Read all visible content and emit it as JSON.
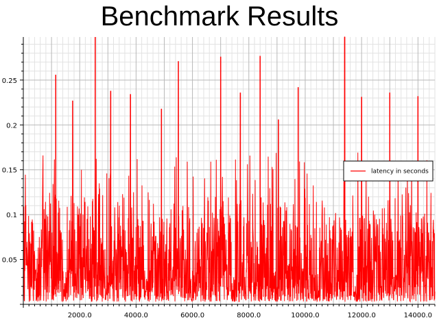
{
  "chart_data": {
    "type": "line",
    "title": "Benchmark Results",
    "xlabel": "",
    "ylabel": "",
    "xlim": [
      0,
      14600
    ],
    "ylim": [
      0,
      0.298
    ],
    "x_ticks": [
      2000,
      4000,
      6000,
      8000,
      10000,
      12000,
      14000
    ],
    "x_tick_labels": [
      "2000.0",
      "4000.0",
      "6000.0",
      "8000.0",
      "10000.0",
      "12000.0",
      "14000.0"
    ],
    "y_ticks": [
      0.05,
      0.1,
      0.15,
      0.2,
      0.25
    ],
    "y_tick_labels": [
      "0.05",
      "0.1",
      "0.15",
      "0.2",
      "0.25"
    ],
    "grid": true,
    "legend_position": "right",
    "series": [
      {
        "name": "latency in seconds",
        "color": "#ff0000",
        "baseline": 0.03,
        "floor": 0.003,
        "spikes": [
          {
            "x": 1150,
            "y": 0.256
          },
          {
            "x": 1750,
            "y": 0.227
          },
          {
            "x": 2550,
            "y": 0.298
          },
          {
            "x": 3100,
            "y": 0.238
          },
          {
            "x": 3800,
            "y": 0.234
          },
          {
            "x": 4900,
            "y": 0.218
          },
          {
            "x": 5500,
            "y": 0.271
          },
          {
            "x": 7000,
            "y": 0.276
          },
          {
            "x": 7700,
            "y": 0.236
          },
          {
            "x": 8400,
            "y": 0.277
          },
          {
            "x": 9050,
            "y": 0.206
          },
          {
            "x": 9750,
            "y": 0.242
          },
          {
            "x": 11400,
            "y": 0.298
          },
          {
            "x": 12000,
            "y": 0.231
          },
          {
            "x": 13000,
            "y": 0.236
          },
          {
            "x": 14000,
            "y": 0.232
          }
        ],
        "dips": [
          {
            "x": 1500,
            "y": 0.03
          },
          {
            "x": 3000,
            "y": 0.03
          },
          {
            "x": 4400,
            "y": 0.025
          },
          {
            "x": 6000,
            "y": 0.025
          },
          {
            "x": 7500,
            "y": 0.025
          },
          {
            "x": 8900,
            "y": 0.03
          },
          {
            "x": 10400,
            "y": 0.03
          },
          {
            "x": 11800,
            "y": 0.025
          },
          {
            "x": 13200,
            "y": 0.03
          }
        ]
      }
    ]
  }
}
